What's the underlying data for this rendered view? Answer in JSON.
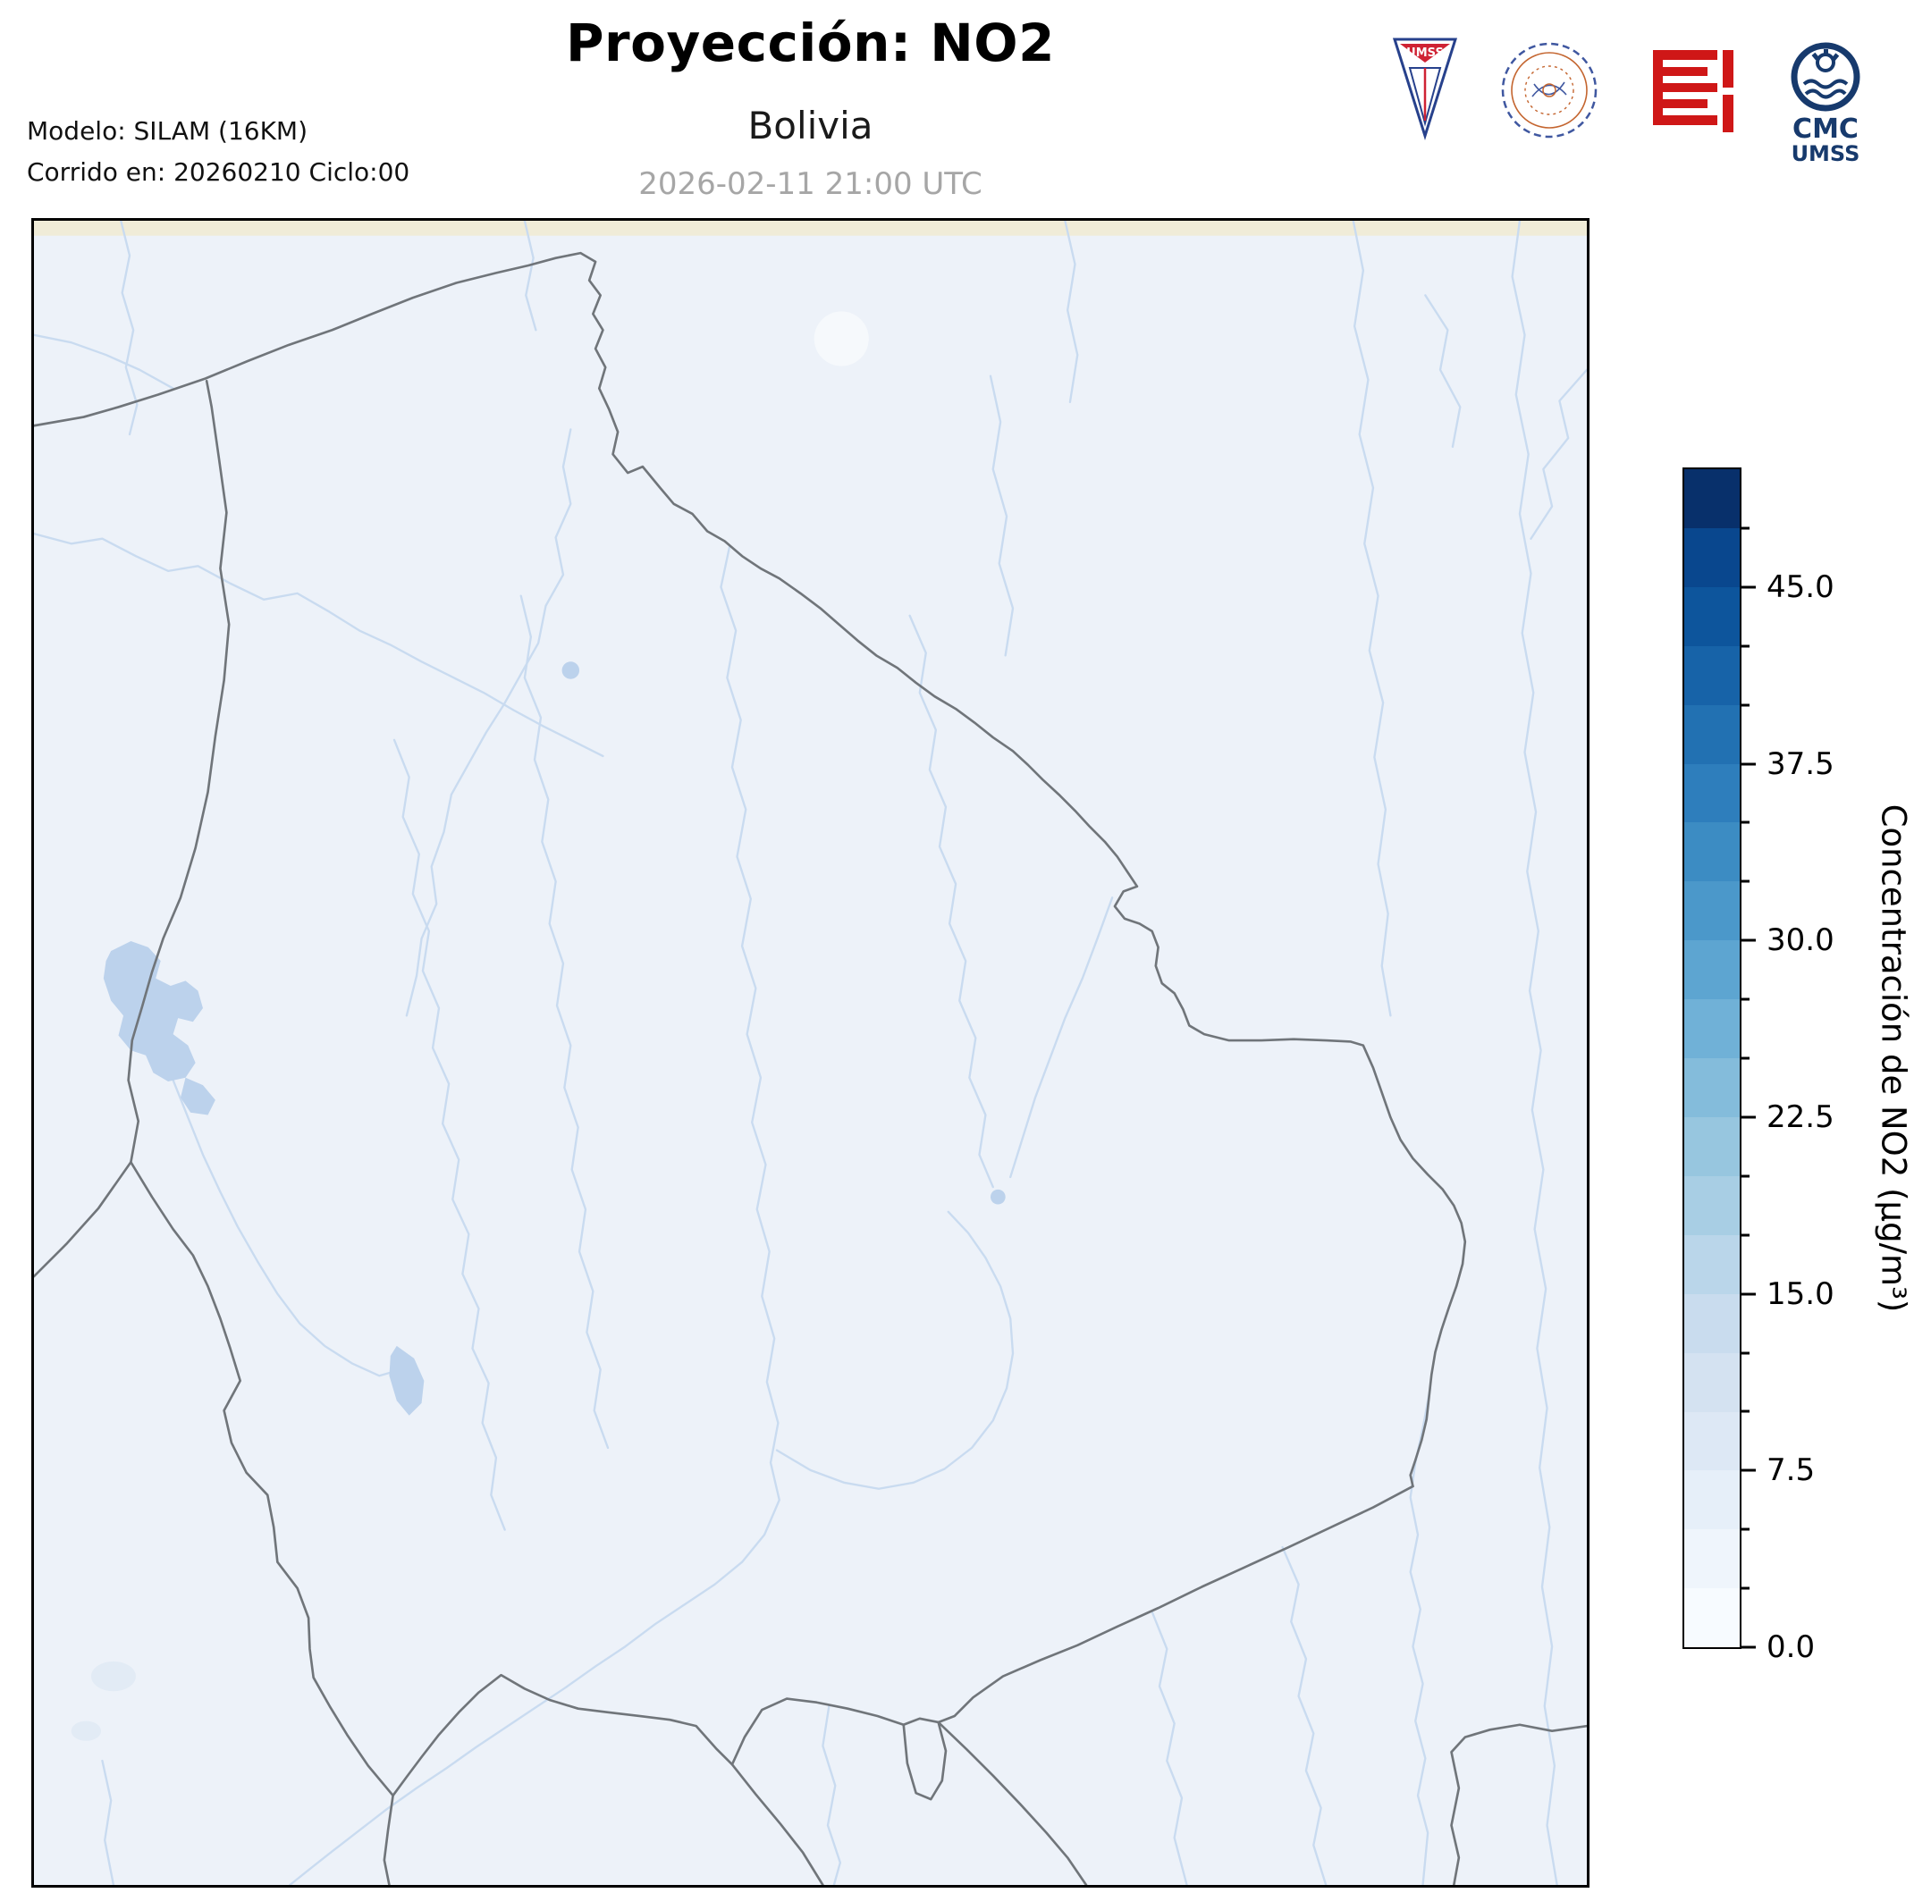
{
  "header": {
    "title": "Proyección: NO2",
    "subtitle": "Bolivia",
    "datetime": "2026-02-11 21:00 UTC",
    "model_line1": "Modelo: SILAM (16KM)",
    "model_line2": "Corrido en: 20260210 Ciclo:00"
  },
  "logos": {
    "umss_text": "UMSS",
    "cmc_line1": "CMC",
    "cmc_line2": "UMSS",
    "items": [
      "umss-shield-logo",
      "physics-department-seal",
      "fcyt-red-logo",
      "cmc-umss-logo"
    ]
  },
  "colors": {
    "map_background": "#edf2f9",
    "land_strip": "#f0ecd8",
    "border": "#70757a",
    "river": "#c9dbf0",
    "lake": "#bcd2ec",
    "date_gray": "#a6a6a6",
    "logo_red": "#cf1717",
    "cmc_navy": "#173a6d",
    "seal_blue": "#3f57a0",
    "seal_orange": "#c4652f",
    "umss_blue": "#27418c",
    "umss_red": "#cf2233"
  },
  "chart_data": {
    "type": "heatmap",
    "title": "Proyección: NO2",
    "region": "Bolivia",
    "valid_time": "2026-02-11 21:00 UTC",
    "model": "SILAM (16KM)",
    "run": "Corrido en: 20260210 Ciclo:00",
    "field": "Concentración de NO2 (µg/m³)",
    "value_range": [
      0,
      50
    ],
    "field_note": "NO2 concentration field is approximately 0 µg/m³ over the whole domain (uniform minimum colormap color); basemap shows country borders, rivers and lakes of Bolivia and neighbors",
    "colorbar": {
      "label": "Concentración de NO2 (µg/m³)",
      "orientation": "vertical",
      "position": "right",
      "range": [
        0,
        50
      ],
      "ticks": [
        0,
        7.5,
        15,
        22.5,
        30,
        37.5,
        45
      ],
      "tick_labels": [
        "0.0",
        "7.5",
        "15.0",
        "22.5",
        "30.0",
        "37.5",
        "45.0"
      ],
      "minor_tick_step": 2.5,
      "colormap": "Blues",
      "segment_colors_bottom_to_top": [
        "#f7fbff",
        "#eff5fc",
        "#e6eff9",
        "#dde8f5",
        "#d4e2f1",
        "#c9dcee",
        "#bad6ea",
        "#a8cee4",
        "#97c6df",
        "#84bcdb",
        "#70b1d7",
        "#5da5d1",
        "#4b98ca",
        "#3c8cc3",
        "#2e7ebc",
        "#2271b2",
        "#1763a8",
        "#0d559c",
        "#09478e",
        "#08306b"
      ]
    }
  }
}
